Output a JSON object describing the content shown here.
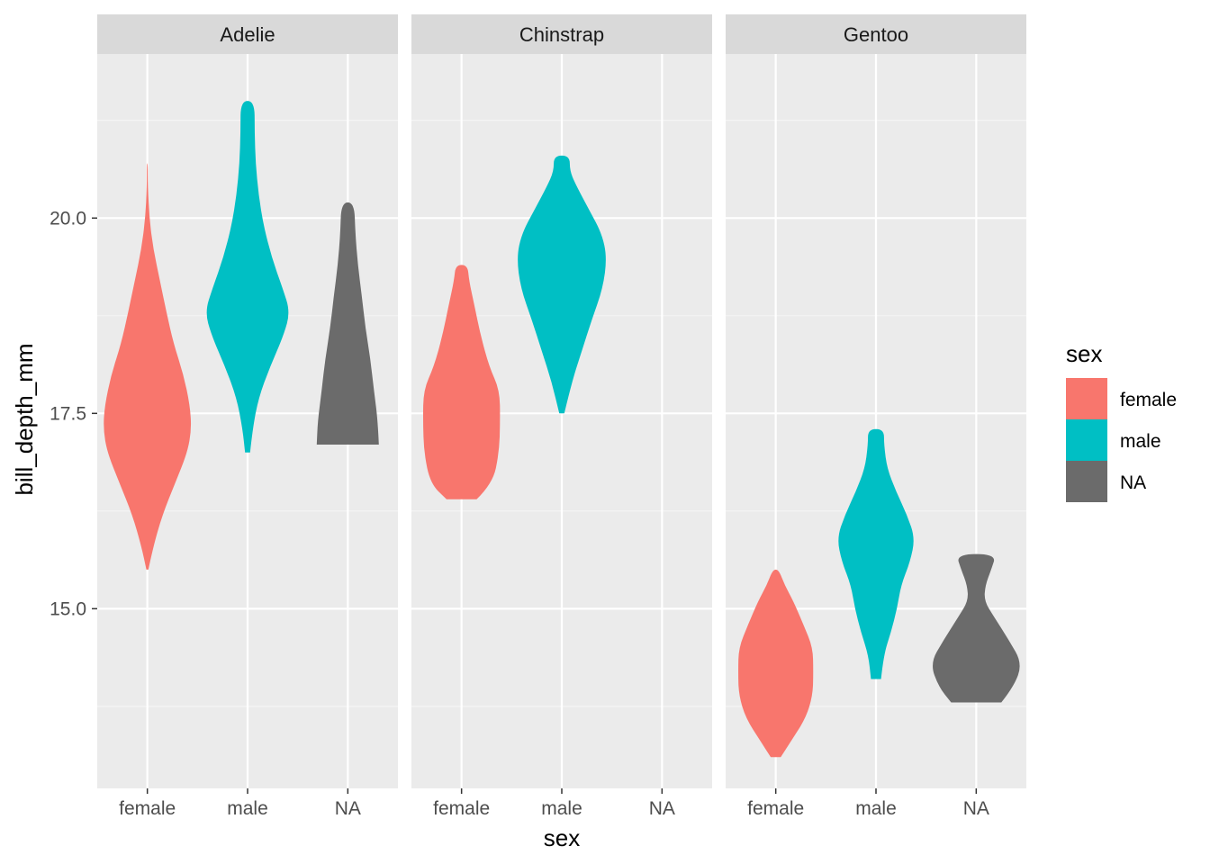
{
  "chart_data": {
    "type": "violin",
    "xlabel": "sex",
    "ylabel": "bill_depth_mm",
    "categories": [
      "female",
      "male",
      "NA"
    ],
    "yticks": [
      15.0,
      17.5,
      20.0
    ],
    "ytick_labels": [
      "15.0",
      "17.5",
      "20.0"
    ],
    "ylim": [
      12.7,
      22.1
    ],
    "grid": true,
    "facets": [
      {
        "name": "Adelie",
        "violins": [
          {
            "sex": "female",
            "fill": "#F8766D",
            "profile": [
              [
                15.5,
                0.02
              ],
              [
                15.8,
                0.12
              ],
              [
                16.2,
                0.3
              ],
              [
                16.6,
                0.55
              ],
              [
                17.0,
                0.8
              ],
              [
                17.3,
                0.88
              ],
              [
                17.6,
                0.85
              ],
              [
                18.0,
                0.72
              ],
              [
                18.4,
                0.52
              ],
              [
                18.8,
                0.38
              ],
              [
                19.2,
                0.25
              ],
              [
                19.6,
                0.12
              ],
              [
                20.0,
                0.04
              ],
              [
                20.4,
                0.01
              ],
              [
                20.7,
                0.01
              ]
            ]
          },
          {
            "sex": "male",
            "fill": "#00BFC4",
            "profile": [
              [
                17.0,
                0.05
              ],
              [
                17.3,
                0.1
              ],
              [
                17.7,
                0.22
              ],
              [
                18.1,
                0.45
              ],
              [
                18.5,
                0.72
              ],
              [
                18.8,
                0.85
              ],
              [
                19.1,
                0.7
              ],
              [
                19.5,
                0.48
              ],
              [
                19.9,
                0.32
              ],
              [
                20.3,
                0.22
              ],
              [
                20.7,
                0.16
              ],
              [
                21.1,
                0.14
              ],
              [
                21.5,
                0.14
              ]
            ]
          },
          {
            "sex": "NA",
            "fill": "#6B6B6B",
            "profile": [
              [
                17.1,
                0.62
              ],
              [
                17.4,
                0.6
              ],
              [
                17.8,
                0.52
              ],
              [
                18.2,
                0.45
              ],
              [
                18.6,
                0.35
              ],
              [
                19.0,
                0.28
              ],
              [
                19.4,
                0.2
              ],
              [
                19.8,
                0.15
              ],
              [
                20.2,
                0.13
              ]
            ]
          }
        ]
      },
      {
        "name": "Chinstrap",
        "violins": [
          {
            "sex": "female",
            "fill": "#F8766D",
            "profile": [
              [
                16.4,
                0.3
              ],
              [
                16.6,
                0.62
              ],
              [
                17.0,
                0.75
              ],
              [
                17.4,
                0.77
              ],
              [
                17.8,
                0.76
              ],
              [
                18.1,
                0.55
              ],
              [
                18.5,
                0.38
              ],
              [
                18.9,
                0.25
              ],
              [
                19.2,
                0.15
              ],
              [
                19.4,
                0.12
              ]
            ]
          },
          {
            "sex": "male",
            "fill": "#00BFC4",
            "profile": [
              [
                17.5,
                0.05
              ],
              [
                17.9,
                0.2
              ],
              [
                18.3,
                0.4
              ],
              [
                18.7,
                0.6
              ],
              [
                19.1,
                0.82
              ],
              [
                19.5,
                0.9
              ],
              [
                19.8,
                0.8
              ],
              [
                20.1,
                0.55
              ],
              [
                20.4,
                0.3
              ],
              [
                20.6,
                0.16
              ],
              [
                20.8,
                0.16
              ]
            ]
          }
        ]
      },
      {
        "name": "Gentoo",
        "violins": [
          {
            "sex": "female",
            "fill": "#F8766D",
            "profile": [
              [
                13.1,
                0.1
              ],
              [
                13.3,
                0.3
              ],
              [
                13.6,
                0.6
              ],
              [
                13.9,
                0.74
              ],
              [
                14.2,
                0.75
              ],
              [
                14.5,
                0.74
              ],
              [
                14.8,
                0.55
              ],
              [
                15.1,
                0.35
              ],
              [
                15.3,
                0.18
              ],
              [
                15.5,
                0.06
              ]
            ]
          },
          {
            "sex": "male",
            "fill": "#00BFC4",
            "profile": [
              [
                14.1,
                0.1
              ],
              [
                14.4,
                0.15
              ],
              [
                14.7,
                0.3
              ],
              [
                15.0,
                0.42
              ],
              [
                15.3,
                0.5
              ],
              [
                15.6,
                0.68
              ],
              [
                15.9,
                0.78
              ],
              [
                16.2,
                0.62
              ],
              [
                16.5,
                0.4
              ],
              [
                16.8,
                0.22
              ],
              [
                17.1,
                0.16
              ],
              [
                17.3,
                0.16
              ]
            ]
          },
          {
            "sex": "NA",
            "fill": "#6B6B6B",
            "profile": [
              [
                13.8,
                0.5
              ],
              [
                14.0,
                0.75
              ],
              [
                14.3,
                0.92
              ],
              [
                14.6,
                0.65
              ],
              [
                14.9,
                0.35
              ],
              [
                15.1,
                0.16
              ],
              [
                15.3,
                0.18
              ],
              [
                15.5,
                0.3
              ],
              [
                15.7,
                0.4
              ]
            ]
          }
        ]
      }
    ],
    "legend": {
      "title": "sex",
      "position": "right",
      "items": [
        {
          "label": "female",
          "color": "#F8766D"
        },
        {
          "label": "male",
          "color": "#00BFC4"
        },
        {
          "label": "NA",
          "color": "#6B6B6B"
        }
      ]
    }
  }
}
